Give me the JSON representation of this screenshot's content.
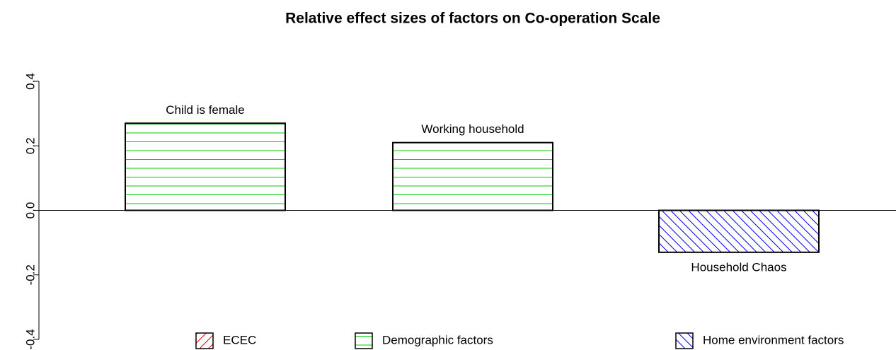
{
  "chart_data": {
    "type": "bar",
    "title": "Relative effect sizes of factors on  Co-operation Scale",
    "categories": [
      "Child is female",
      "Working household",
      "Household Chaos"
    ],
    "series": [
      {
        "name": "ECEC",
        "color": "#ff0000",
        "hatch": "forward-diagonal",
        "values": [
          null,
          null,
          null
        ]
      },
      {
        "name": "Demographic factors",
        "color": "#00cc00",
        "hatch": "horizontal",
        "values": [
          0.27,
          0.21,
          null
        ]
      },
      {
        "name": "Home environment factors",
        "color": "#0000ff",
        "hatch": "back-diagonal",
        "values": [
          null,
          null,
          -0.13
        ]
      }
    ],
    "ylim": [
      -0.4,
      0.4
    ],
    "yticks": [
      -0.4,
      -0.2,
      {
        "value": 0,
        "label": "0.0"
      },
      0.2,
      0.4
    ],
    "zero_line": true,
    "legend": "bottom"
  }
}
